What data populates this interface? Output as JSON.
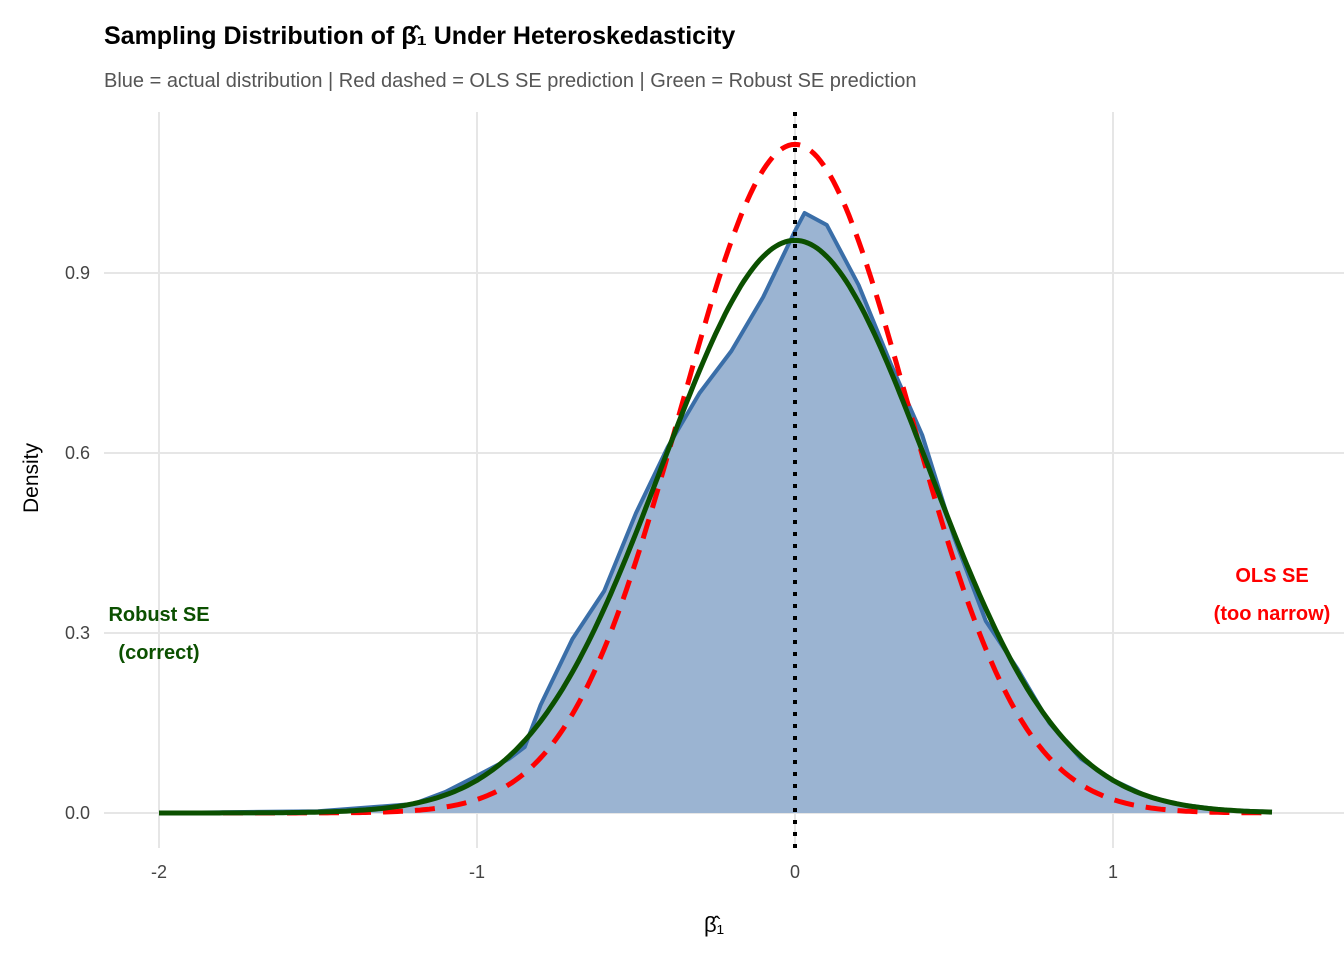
{
  "chart_data": {
    "type": "line",
    "title": "Sampling Distribution of β̂₁ Under Heteroskedasticity",
    "subtitle": "Blue = actual distribution | Red dashed = OLS SE prediction | Green = Robust SE prediction",
    "xlabel": "β̂₁",
    "ylabel": "Density",
    "xlim": [
      -2.2,
      1.7
    ],
    "ylim": [
      -0.05,
      1.17
    ],
    "xticks": [
      -2,
      -1,
      0,
      1
    ],
    "xtick_labels": [
      "-2",
      "-1",
      "0",
      "1"
    ],
    "yticks": [
      0,
      0.3,
      0.6,
      0.9
    ],
    "ytick_labels": [
      "0.0",
      "0.3",
      "0.6",
      "0.9"
    ],
    "grid": true,
    "vline": {
      "x": 0,
      "style": "dotted",
      "color": "#000000"
    },
    "series": [
      {
        "name": "Actual distribution (density)",
        "color": "#3a6ea8",
        "fill": "#9bb4d2",
        "x": [
          -2.0,
          -1.5,
          -1.2,
          -1.1,
          -1.0,
          -0.9,
          -0.85,
          -0.8,
          -0.7,
          -0.6,
          -0.5,
          -0.4,
          -0.3,
          -0.2,
          -0.1,
          0.0,
          0.03,
          0.1,
          0.2,
          0.3,
          0.4,
          0.5,
          0.6,
          0.7,
          0.8,
          0.9,
          1.0,
          1.1,
          1.2,
          1.35,
          1.5
        ],
        "y": [
          0.0,
          0.003,
          0.015,
          0.035,
          0.062,
          0.09,
          0.11,
          0.18,
          0.29,
          0.37,
          0.5,
          0.61,
          0.7,
          0.77,
          0.86,
          0.97,
          1.0,
          0.98,
          0.88,
          0.75,
          0.63,
          0.46,
          0.32,
          0.24,
          0.15,
          0.09,
          0.055,
          0.03,
          0.015,
          0.005,
          0.002
        ]
      },
      {
        "name": "OLS SE prediction",
        "color": "#ff0000",
        "dash": true,
        "mean": 0.0,
        "sd": 0.358
      },
      {
        "name": "Robust SE prediction",
        "color": "#0b5000",
        "mean": 0.0,
        "sd": 0.418
      }
    ],
    "annotations": [
      {
        "text1": "Robust SE",
        "text2": "(correct)",
        "x": -2.0,
        "y": 0.28,
        "color": "#0b5000"
      },
      {
        "text1": "OLS SE",
        "text2": "(too narrow)",
        "x": 1.5,
        "y": 0.345,
        "color": "#ff0000"
      }
    ]
  }
}
